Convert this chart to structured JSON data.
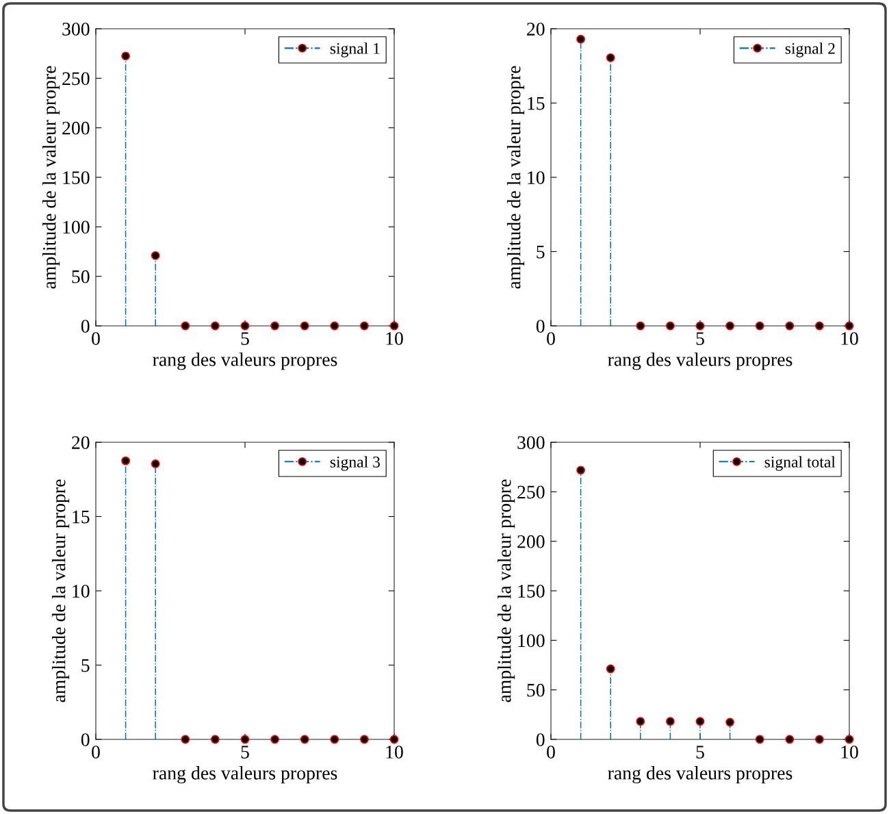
{
  "chart_data": [
    {
      "type": "lollipop",
      "xlabel": "rang des valeurs propres",
      "ylabel": "amplitude de la valeur propre",
      "x": [
        1,
        2,
        3,
        4,
        5,
        6,
        7,
        8,
        9,
        10
      ],
      "series": [
        {
          "name": "signal 1",
          "color": "#0072bd",
          "colors": [
            "#000000",
            "#000000",
            "#000000",
            "#000000",
            "#000000",
            "#000000",
            "#000000",
            "#000000",
            "#000000",
            "#000000"
          ],
          "values": [
            272.5,
            71,
            0,
            0,
            0,
            0,
            0,
            0,
            0,
            0
          ]
        }
      ],
      "xlim": [
        0,
        10
      ],
      "xticks": [
        0,
        5,
        10
      ],
      "ylim": [
        0,
        300
      ],
      "yticks": [
        0,
        50,
        100,
        150,
        200,
        250,
        300
      ],
      "legend": "top right",
      "marker": "circle",
      "line_style": "dashdot",
      "grid": false
    },
    {
      "type": "lollipop",
      "xlabel": "rang des valeurs propres",
      "ylabel": "amplitude de la valeur propre",
      "x": [
        1,
        2,
        3,
        4,
        5,
        6,
        7,
        8,
        9,
        10
      ],
      "series": [
        {
          "name": "signal 2",
          "color": "#0072bd",
          "colors": [
            "#000000",
            "#000000",
            "#000000",
            "#000000",
            "#000000",
            "#000000",
            "#000000",
            "#000000",
            "#000000",
            "#000000"
          ],
          "values": [
            19.3,
            18.05,
            0,
            0,
            0,
            0,
            0,
            0,
            0,
            0
          ]
        }
      ],
      "xlim": [
        0,
        10
      ],
      "xticks": [
        0,
        5,
        10
      ],
      "ylim": [
        0,
        20
      ],
      "yticks": [
        0,
        5,
        10,
        15,
        20
      ],
      "legend": "top right",
      "marker": "circle",
      "line_style": "dashdot",
      "grid": false
    },
    {
      "type": "lollipop",
      "xlabel": "rang des valeurs propres",
      "ylabel": "amplitude de la valeur propre",
      "x": [
        1,
        2,
        3,
        4,
        5,
        6,
        7,
        8,
        9,
        10
      ],
      "series": [
        {
          "name": "signal 3",
          "color": "#0072bd",
          "colors": [
            "#000000",
            "#000000",
            "#000000",
            "#000000",
            "#000000",
            "#000000",
            "#000000",
            "#000000",
            "#000000",
            "#000000"
          ],
          "values": [
            18.75,
            18.55,
            0,
            0,
            0,
            0,
            0,
            0,
            0,
            0
          ]
        }
      ],
      "xlim": [
        0,
        10
      ],
      "xticks": [
        0,
        5,
        10
      ],
      "ylim": [
        0,
        20
      ],
      "yticks": [
        0,
        5,
        10,
        15,
        20
      ],
      "legend": "top right",
      "marker": "circle",
      "line_style": "dashdot",
      "grid": false
    },
    {
      "type": "lollipop",
      "xlabel": "rang des valeurs propres",
      "ylabel": "amplitude de la valeur propre",
      "x": [
        1,
        2,
        3,
        4,
        5,
        6,
        7,
        8,
        9,
        10
      ],
      "series": [
        {
          "name": "signal total",
          "color": "#0072bd",
          "colors": [
            "#000000",
            "#000000",
            "#000000",
            "#000000",
            "#000000",
            "#000000",
            "#000000",
            "#000000",
            "#000000",
            "#000000"
          ],
          "values": [
            271.8,
            71.2,
            18.2,
            18.2,
            18.2,
            17.3,
            0,
            0,
            0,
            0
          ]
        }
      ],
      "xlim": [
        0,
        10
      ],
      "xticks": [
        0,
        5,
        10
      ],
      "ylim": [
        0,
        300
      ],
      "yticks": [
        0,
        50,
        100,
        150,
        200,
        250,
        300
      ],
      "legend": "top right",
      "marker": "circle",
      "line_style": "dashdot",
      "grid": false
    }
  ]
}
